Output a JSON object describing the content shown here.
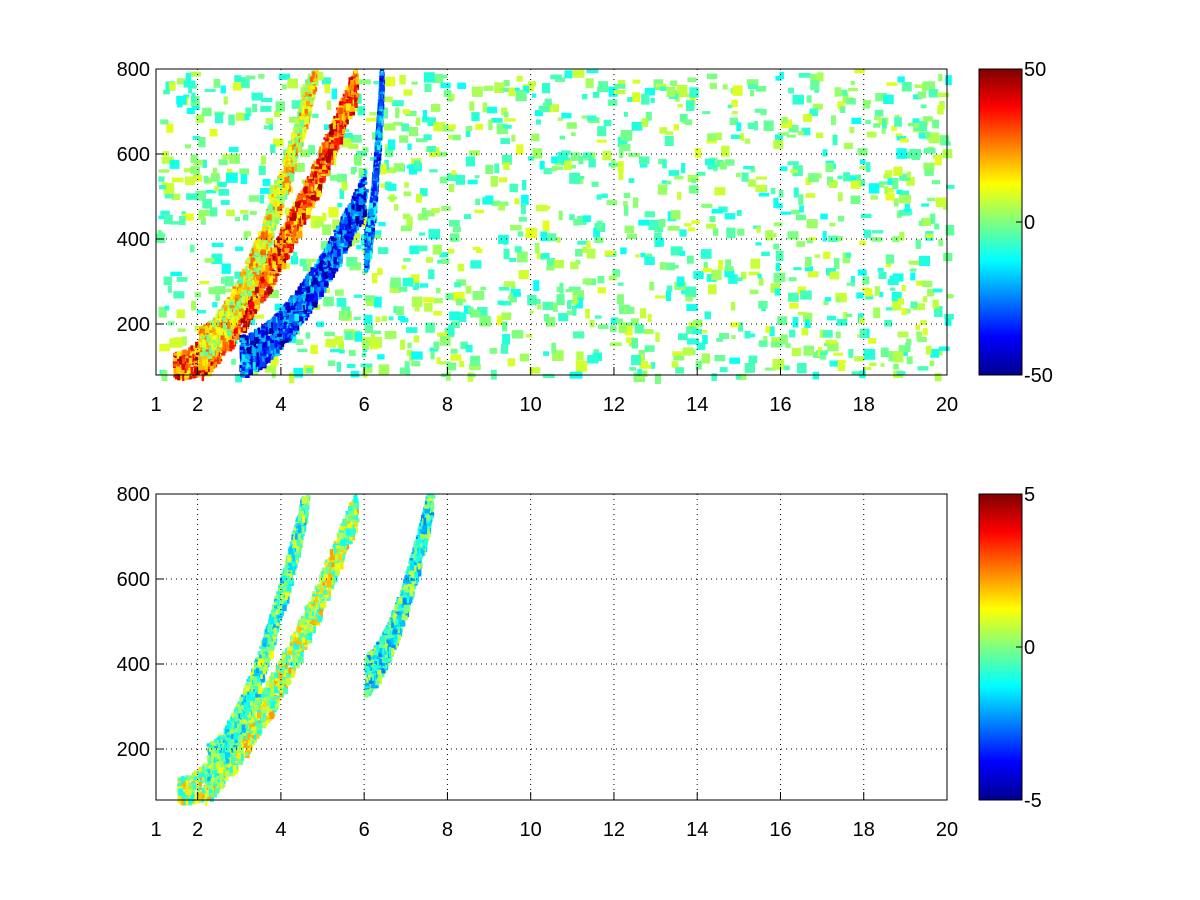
{
  "chart_data": [
    {
      "type": "heatmap",
      "title": "",
      "xlabel": "",
      "ylabel": "",
      "xlim": [
        1,
        20
      ],
      "ylim": [
        80,
        800
      ],
      "x_ticks": [
        1,
        2,
        4,
        6,
        8,
        10,
        12,
        14,
        16,
        18,
        20
      ],
      "x_tick_labels": [
        "1",
        "2",
        "4",
        "6",
        "8",
        "10",
        "12",
        "14",
        "16",
        "18",
        "20"
      ],
      "y_ticks": [
        200,
        400,
        600,
        800
      ],
      "y_tick_labels": [
        "200",
        "400",
        "600",
        "800"
      ],
      "grid": true,
      "colormap": "jet",
      "clim": [
        -50,
        50
      ],
      "colorbar_ticks": [
        50,
        0,
        -50
      ],
      "colorbar_tick_labels": [
        "50",
        "0",
        "-50"
      ],
      "bands": [
        {
          "x_range": [
            1.4,
            5.8
          ],
          "y_start": 90,
          "y_end": 780,
          "value": 30
        },
        {
          "x_range": [
            3.0,
            6.0
          ],
          "y_start": 130,
          "y_end": 520,
          "value": -30
        },
        {
          "x_range": [
            2.0,
            4.8
          ],
          "y_start": 150,
          "y_end": 800,
          "value": 12
        },
        {
          "x_range": [
            6.0,
            6.4
          ],
          "y_start": 380,
          "y_end": 800,
          "value": -25
        }
      ],
      "background_noise": {
        "x_range": [
          1,
          20
        ],
        "value_range": [
          -12,
          10
        ]
      }
    },
    {
      "type": "heatmap",
      "title": "",
      "xlabel": "",
      "ylabel": "",
      "xlim": [
        1,
        20
      ],
      "ylim": [
        80,
        800
      ],
      "x_ticks": [
        1,
        2,
        4,
        6,
        8,
        10,
        12,
        14,
        16,
        18,
        20
      ],
      "x_tick_labels": [
        "1",
        "2",
        "4",
        "6",
        "8",
        "10",
        "12",
        "14",
        "16",
        "18",
        "20"
      ],
      "y_ticks": [
        200,
        400,
        600,
        800
      ],
      "y_tick_labels": [
        "200",
        "400",
        "600",
        "800"
      ],
      "grid": true,
      "colormap": "jet",
      "clim": [
        -5,
        5
      ],
      "colorbar_ticks": [
        5,
        0,
        -5
      ],
      "colorbar_tick_labels": [
        "5",
        "0",
        "-5"
      ],
      "bands": [
        {
          "x_range": [
            1.5,
            5.8
          ],
          "y_start": 90,
          "y_end": 780,
          "value": 0.5
        },
        {
          "x_range": [
            2.2,
            4.6
          ],
          "y_start": 170,
          "y_end": 800,
          "value": -0.5
        },
        {
          "x_range": [
            6.0,
            7.6
          ],
          "y_start": 380,
          "y_end": 800,
          "value": -0.8
        }
      ],
      "background_noise": null
    }
  ]
}
